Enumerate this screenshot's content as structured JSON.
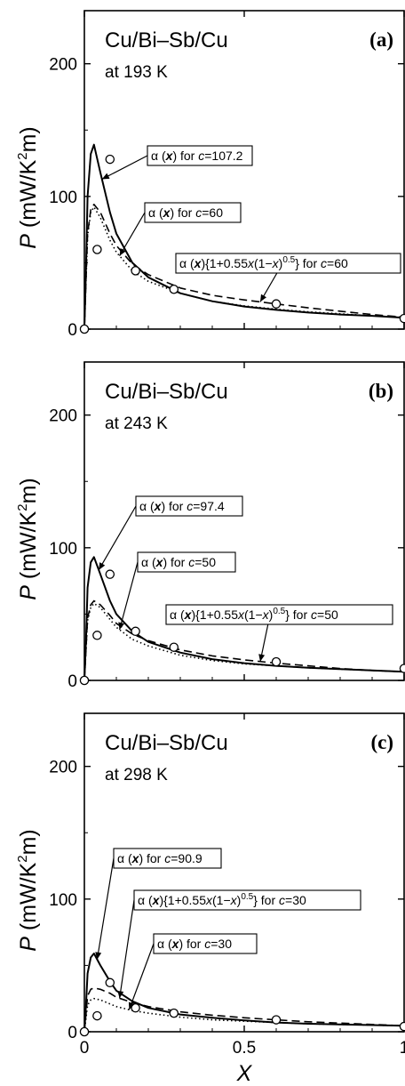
{
  "chart_data": [
    {
      "type": "line",
      "panel_label": "(a)",
      "title": "Cu/Bi–Sb/Cu",
      "subtitle": "at 193 K",
      "ylabel": {
        "symbol": "P",
        "unit_prefix": "(mW/K",
        "unit_sup": "2",
        "unit_suffix": "m)"
      },
      "xlabel": "",
      "xlim": [
        0,
        1
      ],
      "ylim": [
        0,
        240
      ],
      "yticks": [
        0,
        100,
        200
      ],
      "xticks": [
        0,
        0.5,
        1
      ],
      "xtick_labels": [
        "",
        "",
        ""
      ],
      "series": [
        {
          "style": "solid",
          "x": [
            0,
            0.005,
            0.01,
            0.02,
            0.03,
            0.05,
            0.08,
            0.1,
            0.15,
            0.2,
            0.3,
            0.4,
            0.5,
            0.6,
            0.7,
            0.8,
            0.9,
            1.0
          ],
          "values": [
            0,
            45,
            100,
            132,
            139,
            118,
            88,
            72,
            50,
            39,
            27,
            21,
            17,
            14.5,
            12.5,
            11,
            10,
            8.5
          ]
        },
        {
          "style": "dotted",
          "x": [
            0,
            0.005,
            0.01,
            0.02,
            0.03,
            0.05,
            0.08,
            0.1,
            0.15,
            0.2,
            0.3,
            0.4,
            0.5,
            0.6,
            0.7,
            0.8,
            0.9,
            1.0
          ],
          "values": [
            0,
            35,
            70,
            88,
            92,
            84,
            67,
            58,
            44,
            36,
            27,
            21,
            17.5,
            15,
            13,
            11.5,
            10,
            9
          ]
        },
        {
          "style": "dashed",
          "x": [
            0,
            0.005,
            0.01,
            0.02,
            0.03,
            0.05,
            0.08,
            0.1,
            0.15,
            0.2,
            0.3,
            0.4,
            0.5,
            0.6,
            0.7,
            0.8,
            0.9,
            1.0
          ],
          "values": [
            0,
            36,
            72,
            90,
            94,
            88,
            72,
            63,
            49,
            41,
            31,
            25.5,
            22,
            19,
            16,
            13.5,
            11,
            9
          ]
        }
      ],
      "points": {
        "x": [
          0,
          0.04,
          0.08,
          0.16,
          0.28,
          0.6,
          1.0
        ],
        "y": [
          0,
          60,
          128,
          44,
          30,
          19,
          8
        ]
      },
      "annotations": [
        {
          "pre": "α (",
          "var": "x",
          "mid": ") for ",
          "cvar": "c",
          "post": "=107.2"
        },
        {
          "pre": "α (",
          "var": "x",
          "mid": ") for ",
          "cvar": "c",
          "post": "=60"
        },
        {
          "pre": "α (",
          "var": "x",
          "mid": "){1+0.55",
          "var2": "x",
          "mid2": "(1−",
          "var3": "x",
          "mid3": ")",
          "sup": "0.5",
          "mid4": "} for ",
          "cvar": "c",
          "post": "=60"
        }
      ]
    },
    {
      "type": "line",
      "panel_label": "(b)",
      "title": "Cu/Bi–Sb/Cu",
      "subtitle": "at 243 K",
      "ylabel": {
        "symbol": "P",
        "unit_prefix": "(mW/K",
        "unit_sup": "2",
        "unit_suffix": "m)"
      },
      "xlabel": "",
      "xlim": [
        0,
        1
      ],
      "ylim": [
        0,
        240
      ],
      "yticks": [
        0,
        100,
        200
      ],
      "xticks": [
        0,
        0.5,
        1
      ],
      "xtick_labels": [
        "",
        "",
        ""
      ],
      "series": [
        {
          "style": "solid",
          "x": [
            0,
            0.005,
            0.01,
            0.02,
            0.03,
            0.05,
            0.08,
            0.1,
            0.15,
            0.2,
            0.3,
            0.4,
            0.5,
            0.6,
            0.7,
            0.8,
            0.9,
            1.0
          ],
          "values": [
            0,
            30,
            70,
            89,
            93,
            80,
            60,
            50,
            37,
            29,
            21,
            16,
            13,
            11,
            9.5,
            8.5,
            7.5,
            6.5
          ]
        },
        {
          "style": "dotted",
          "x": [
            0,
            0.005,
            0.01,
            0.02,
            0.03,
            0.05,
            0.08,
            0.1,
            0.15,
            0.2,
            0.3,
            0.4,
            0.5,
            0.6,
            0.7,
            0.8,
            0.9,
            1.0
          ],
          "values": [
            0,
            22,
            45,
            55,
            58,
            55,
            46,
            40,
            31,
            26,
            19,
            15,
            12.5,
            11,
            9.5,
            8.5,
            7.5,
            6.5
          ]
        },
        {
          "style": "dashed",
          "x": [
            0,
            0.005,
            0.01,
            0.02,
            0.03,
            0.05,
            0.08,
            0.1,
            0.15,
            0.2,
            0.3,
            0.4,
            0.5,
            0.6,
            0.7,
            0.8,
            0.9,
            1.0
          ],
          "values": [
            0,
            23,
            47,
            57,
            60,
            57,
            49,
            43,
            35,
            30,
            23,
            18.5,
            15.5,
            13,
            11,
            9,
            7.5,
            6.5
          ]
        }
      ],
      "points": {
        "x": [
          0,
          0.04,
          0.08,
          0.16,
          0.28,
          0.6,
          1.0
        ],
        "y": [
          0,
          34,
          80,
          37,
          25,
          14,
          9
        ]
      },
      "annotations": [
        {
          "pre": "α (",
          "var": "x",
          "mid": ") for ",
          "cvar": "c",
          "post": "=97.4"
        },
        {
          "pre": "α (",
          "var": "x",
          "mid": ") for ",
          "cvar": "c",
          "post": "=50"
        },
        {
          "pre": "α (",
          "var": "x",
          "mid": "){1+0.55",
          "var2": "x",
          "mid2": "(1−",
          "var3": "x",
          "mid3": ")",
          "sup": "0.5",
          "mid4": "} for ",
          "cvar": "c",
          "post": "=50"
        }
      ]
    },
    {
      "type": "line",
      "panel_label": "(c)",
      "title": "Cu/Bi–Sb/Cu",
      "subtitle": "at 298 K",
      "ylabel": {
        "symbol": "P",
        "unit_prefix": "(mW/K",
        "unit_sup": "2",
        "unit_suffix": "m)"
      },
      "xlabel": "X",
      "xlim": [
        0,
        1
      ],
      "ylim": [
        0,
        240
      ],
      "yticks": [
        0,
        100,
        200
      ],
      "xticks": [
        0,
        0.5,
        1
      ],
      "xtick_labels": [
        "0",
        "0.5",
        "1"
      ],
      "series": [
        {
          "style": "solid",
          "x": [
            0,
            0.005,
            0.01,
            0.02,
            0.03,
            0.05,
            0.08,
            0.1,
            0.15,
            0.2,
            0.3,
            0.4,
            0.5,
            0.6,
            0.7,
            0.8,
            0.9,
            1.0
          ],
          "values": [
            0,
            20,
            44,
            56,
            59,
            50,
            38,
            31,
            23,
            18,
            13,
            10.5,
            8.5,
            7,
            6,
            5.5,
            5,
            4.5
          ]
        },
        {
          "style": "dotted",
          "x": [
            0,
            0.005,
            0.01,
            0.02,
            0.03,
            0.05,
            0.08,
            0.1,
            0.15,
            0.2,
            0.3,
            0.4,
            0.5,
            0.6,
            0.7,
            0.8,
            0.9,
            1.0
          ],
          "values": [
            0,
            10,
            20,
            24,
            25,
            24,
            21,
            19,
            16,
            14,
            11,
            9,
            8,
            7,
            6,
            5.5,
            5,
            4.5
          ]
        },
        {
          "style": "dashed",
          "x": [
            0,
            0.005,
            0.01,
            0.02,
            0.03,
            0.05,
            0.08,
            0.1,
            0.15,
            0.2,
            0.3,
            0.4,
            0.5,
            0.6,
            0.7,
            0.8,
            0.9,
            1.0
          ],
          "values": [
            0,
            13,
            27,
            32,
            33,
            32,
            29,
            26,
            22,
            19,
            15,
            12.5,
            10.5,
            9,
            7.5,
            6.5,
            5.5,
            4.5
          ]
        }
      ],
      "points": {
        "x": [
          0,
          0.04,
          0.08,
          0.16,
          0.28,
          0.6,
          1.0
        ],
        "y": [
          0,
          12,
          37,
          18,
          14,
          9,
          4
        ]
      },
      "annotations": [
        {
          "pre": "α (",
          "var": "x",
          "mid": ") for ",
          "cvar": "c",
          "post": "=90.9"
        },
        {
          "pre": "α (",
          "var": "x",
          "mid": "){1+0.55",
          "var2": "x",
          "mid2": "(1−",
          "var3": "x",
          "mid3": ")",
          "sup": "0.5",
          "mid4": "} for ",
          "cvar": "c",
          "post": "=30"
        },
        {
          "pre": "α (",
          "var": "x",
          "mid": ") for ",
          "cvar": "c",
          "post": "=30"
        }
      ]
    }
  ]
}
